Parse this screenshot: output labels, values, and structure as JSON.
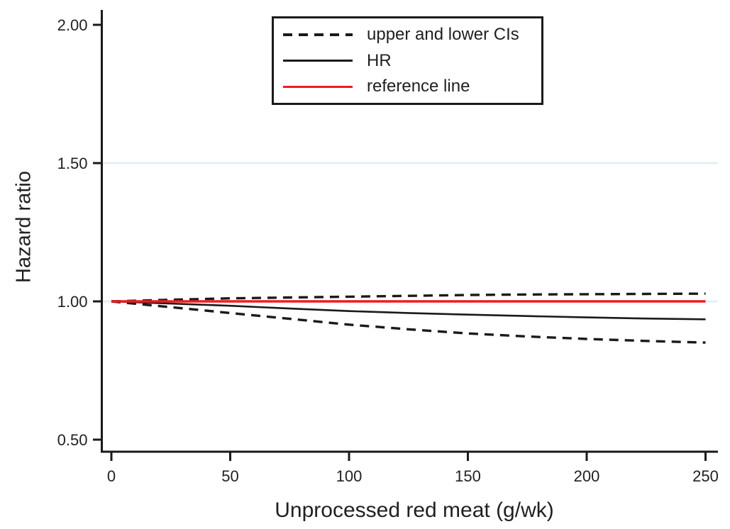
{
  "figure": {
    "background": "#ffffff",
    "text_color": "#231f20",
    "axis_color": "#1a1a1a",
    "grid_color": "#e1edf4"
  },
  "chart_data": {
    "type": "line",
    "title": "",
    "xlabel": "Unprocessed red meat (g/wk)",
    "ylabel": "Hazard ratio",
    "xlim": [
      -4,
      255
    ],
    "ylim": [
      0.455,
      2.055
    ],
    "grid": "horizontal-only",
    "grid_y_values": [
      1.0,
      1.5
    ],
    "x_ticks": [
      {
        "value": 0,
        "label": "0"
      },
      {
        "value": 50,
        "label": "50"
      },
      {
        "value": 100,
        "label": "100"
      },
      {
        "value": 150,
        "label": "150"
      },
      {
        "value": 200,
        "label": "200"
      },
      {
        "value": 250,
        "label": "250"
      }
    ],
    "y_ticks": [
      {
        "value": 0.5,
        "label": "0.50"
      },
      {
        "value": 1.0,
        "label": "1.00"
      },
      {
        "value": 1.5,
        "label": "1.50"
      },
      {
        "value": 2.0,
        "label": "2.00"
      }
    ],
    "series": [
      {
        "name": "upper CI",
        "role": "upper-ci-line",
        "style": "dashed",
        "color": "#1a1a1a",
        "width": 3.4,
        "x": [
          0,
          25,
          50,
          75,
          100,
          125,
          150,
          175,
          200,
          225,
          250
        ],
        "values": [
          1.0,
          1.006,
          1.011,
          1.014,
          1.017,
          1.02,
          1.023,
          1.025,
          1.026,
          1.027,
          1.028
        ]
      },
      {
        "name": "lower CI",
        "role": "lower-ci-line",
        "style": "dashed",
        "color": "#1a1a1a",
        "width": 3.4,
        "x": [
          0,
          25,
          50,
          75,
          100,
          125,
          150,
          175,
          200,
          225,
          250
        ],
        "values": [
          1.0,
          0.979,
          0.958,
          0.937,
          0.916,
          0.899,
          0.884,
          0.873,
          0.864,
          0.857,
          0.851
        ]
      },
      {
        "name": "HR",
        "role": "hr-line",
        "style": "solid",
        "color": "#1a1a1a",
        "width": 2.6,
        "x": [
          0,
          25,
          50,
          75,
          100,
          125,
          150,
          175,
          200,
          225,
          250
        ],
        "values": [
          1.0,
          0.992,
          0.984,
          0.974,
          0.965,
          0.958,
          0.952,
          0.947,
          0.942,
          0.938,
          0.935
        ]
      },
      {
        "name": "reference line",
        "role": "reference-line",
        "style": "solid",
        "color": "#ed1c24",
        "width": 3.4,
        "x": [
          0,
          250
        ],
        "values": [
          1.0,
          1.0
        ]
      }
    ],
    "legend": {
      "position": "top-center-inside",
      "border": "#1a1a1a",
      "entries": [
        {
          "label": "upper and lower CIs",
          "style": "dashed",
          "color": "#1a1a1a",
          "thickness": 4
        },
        {
          "label": "HR",
          "style": "solid",
          "color": "#1a1a1a",
          "thickness": 3
        },
        {
          "label": "reference line",
          "style": "solid",
          "color": "#ed1c24",
          "thickness": 3.5
        }
      ]
    }
  }
}
